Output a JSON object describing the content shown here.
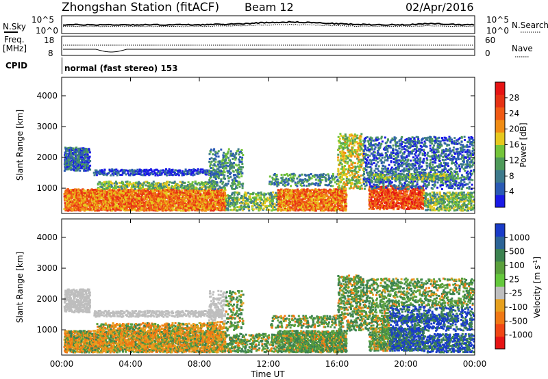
{
  "header": {
    "title": "Zhongshan Station (fitACF)",
    "beam": "Beam 12",
    "date": "02/Apr/2016"
  },
  "noise_panel": {
    "left_label": "N.Sky",
    "right_label": "N.Search",
    "left_ticks": [
      "10^5",
      "10^0"
    ],
    "right_ticks": [
      "10^5",
      "10^0"
    ]
  },
  "freq_panel": {
    "left_label_1": "Freq.",
    "left_label_2": "[MHz]",
    "left_ticks": [
      "18",
      "8"
    ],
    "right_label": "Nave",
    "right_ticks": [
      "60",
      "0"
    ]
  },
  "cpid": {
    "label": "CPID",
    "text": "normal (fast stereo) 153"
  },
  "chart_data": [
    {
      "type": "heatmap",
      "title": "",
      "xlabel": "Time UT",
      "ylabel": "Slant Range [km]",
      "x_ticks": [
        "00:00",
        "04:00",
        "08:00",
        "12:00",
        "16:00",
        "20:00",
        "00:00"
      ],
      "xlim_hours": [
        0,
        24
      ],
      "y_ticks": [
        1000,
        2000,
        3000,
        4000
      ],
      "ylim": [
        180,
        4600
      ],
      "colorbar": {
        "label": "Power [dB]",
        "ticks": [
          "4",
          "8",
          "12",
          "16",
          "20",
          "24",
          "28"
        ],
        "colors": [
          "#1a1ae6",
          "#2a5ab4",
          "#3d7a8c",
          "#4e9a5a",
          "#74c43a",
          "#e6c81e",
          "#f08c14",
          "#f05a14",
          "#e63214",
          "#e61414"
        ]
      }
    },
    {
      "type": "heatmap",
      "title": "",
      "xlabel": "Time UT",
      "ylabel": "Slant Range [km]",
      "x_ticks": [
        "00:00",
        "04:00",
        "08:00",
        "12:00",
        "16:00",
        "20:00",
        "00:00"
      ],
      "xlim_hours": [
        0,
        24
      ],
      "y_ticks": [
        1000,
        2000,
        3000,
        4000
      ],
      "ylim": [
        180,
        4600
      ],
      "colorbar": {
        "label": "Velocity",
        "label_unit": "[m s",
        "label_unit_sup": "-1",
        "label_unit_end": "]",
        "ticks": [
          "1000",
          "500",
          "100",
          "25",
          "-25",
          "-100",
          "-500",
          "-1000"
        ],
        "colors": [
          "#1a3cc8",
          "#2c6496",
          "#3c8250",
          "#5aa03c",
          "#64c83c",
          "#bebebe",
          "#e6a01e",
          "#f07814",
          "#f04614",
          "#e61414"
        ]
      }
    }
  ]
}
